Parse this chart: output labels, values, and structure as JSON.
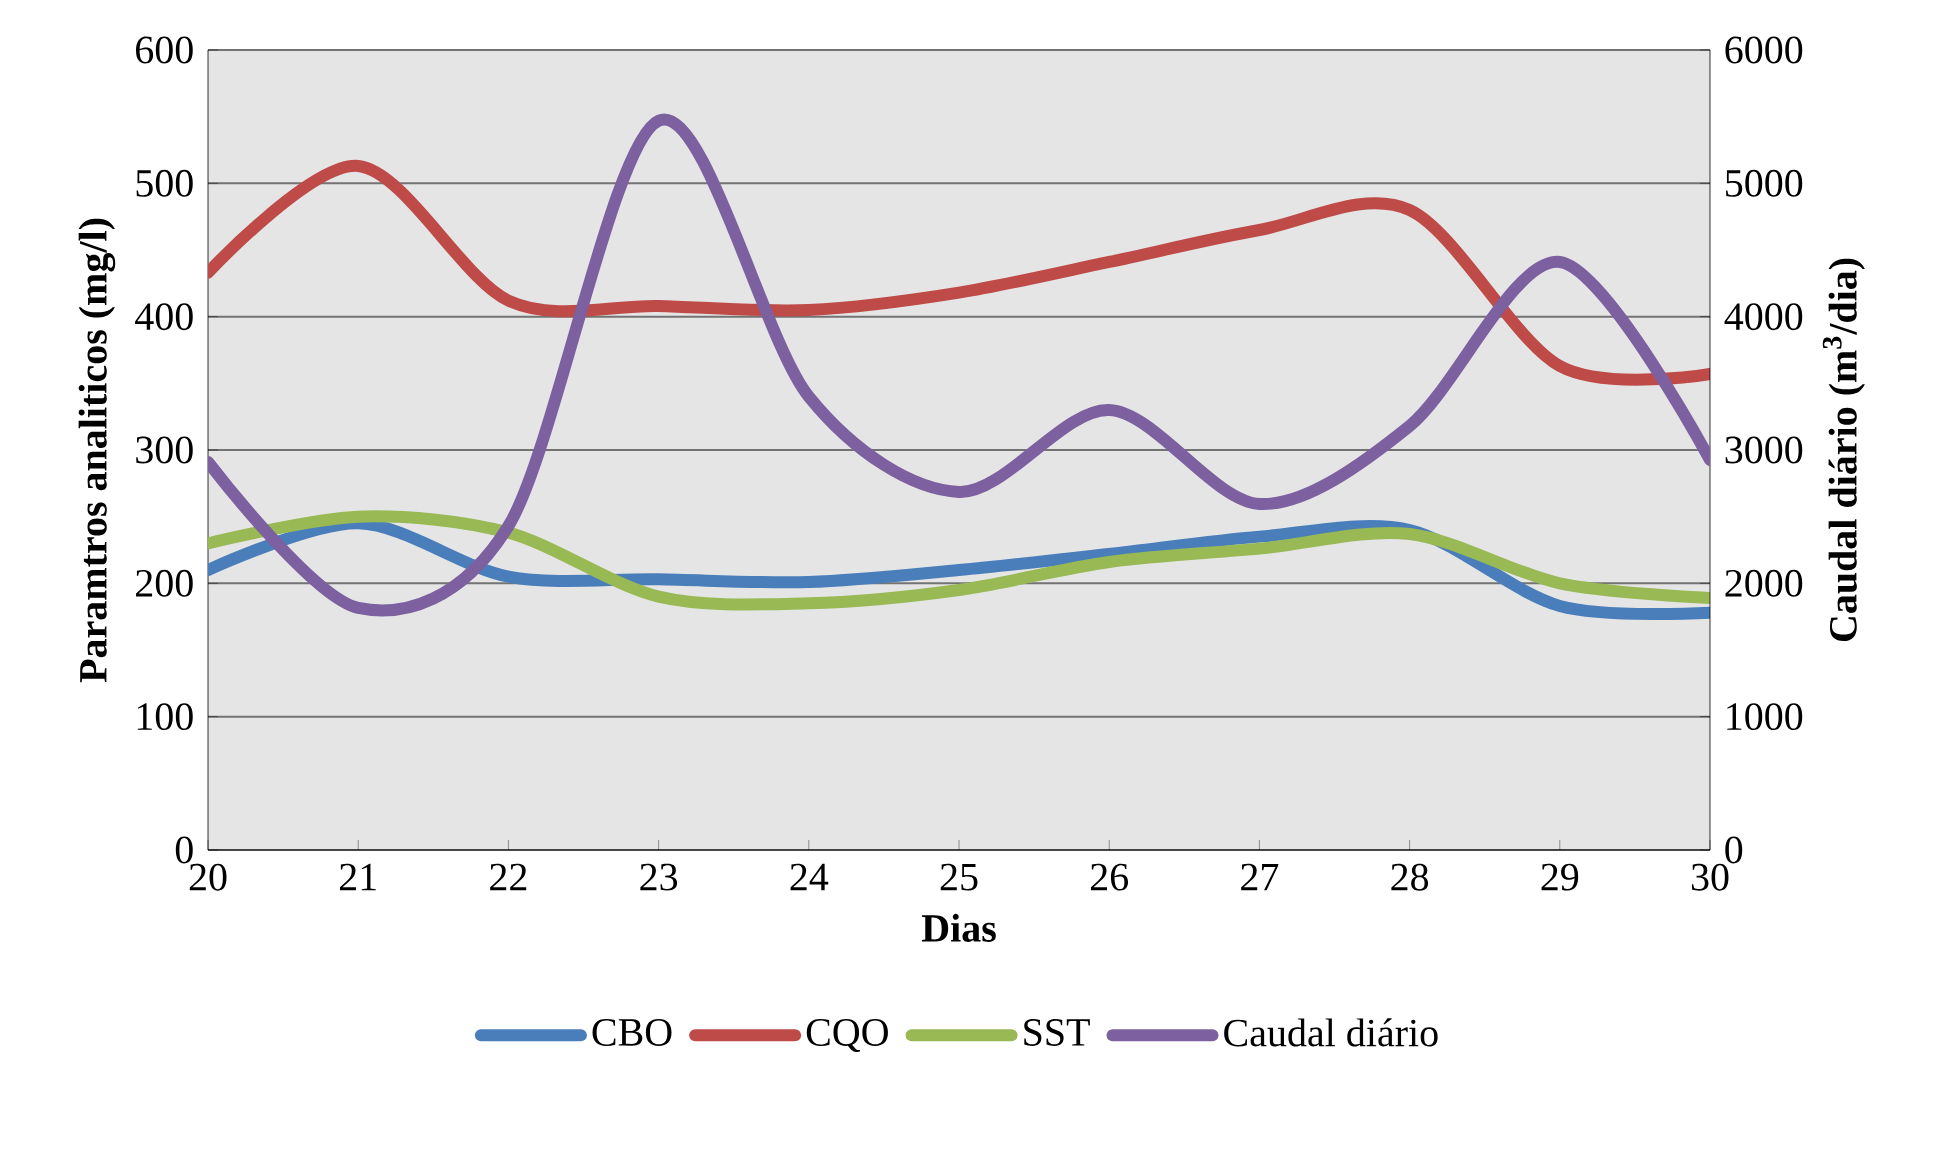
{
  "chart_data": {
    "type": "line",
    "xlabel": "Dias",
    "ylabel": "Paramtros analiticos (mg/l)",
    "y2label": "Caudal diário (m$^{3}$/dia)",
    "x": [
      20,
      21,
      22,
      23,
      24,
      25,
      26,
      27,
      28,
      29,
      30
    ],
    "xlim": [
      20,
      30
    ],
    "xticks": [
      20,
      21,
      22,
      23,
      24,
      25,
      26,
      27,
      28,
      29,
      30
    ],
    "ylim": [
      0,
      600
    ],
    "yticks": [
      0,
      100,
      200,
      300,
      400,
      500,
      600
    ],
    "y2lim": [
      0,
      6000
    ],
    "y2ticks": [
      0,
      1000,
      2000,
      3000,
      4000,
      5000,
      6000
    ],
    "grid": "y",
    "legend": "bottom",
    "marker": "none",
    "line_style": "solid",
    "series": [
      {
        "name": "CBO",
        "color": "#4a7ebb",
        "values": [
          210,
          245,
          205,
          203,
          201,
          210,
          222,
          235,
          240,
          183,
          178
        ]
      },
      {
        "name": "CQO",
        "color": "#be4b48",
        "values": [
          433,
          513,
          412,
          408,
          405,
          418,
          441,
          465,
          480,
          363,
          357
        ]
      },
      {
        "name": "SST",
        "color": "#98b954",
        "values": [
          230,
          250,
          238,
          190,
          185,
          195,
          216,
          226,
          237,
          200,
          189
        ]
      },
      {
        "name": "Caudal diário",
        "color": "#7d60a0",
        "axis": "y2",
        "values": [
          2910,
          1815,
          2430,
          5470,
          3400,
          2685,
          3300,
          2595,
          3180,
          4410,
          2925
        ]
      }
    ]
  }
}
